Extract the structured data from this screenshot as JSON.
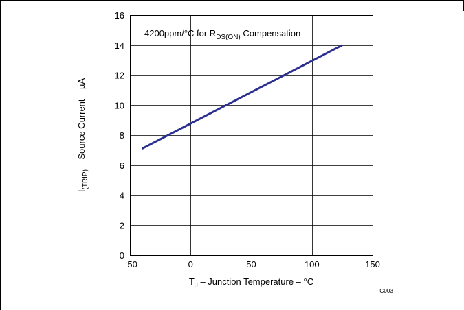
{
  "chart_data": {
    "type": "line",
    "annotation": {
      "text_before": "4200ppm/°C for R",
      "sub": "DS(ON)",
      "text_after": " Compensation"
    },
    "xlabel": {
      "prefix": "T",
      "sub": "J",
      "suffix": " – Junction Temperature – °C"
    },
    "ylabel": {
      "prefix": "I",
      "sub": "(TRIP)",
      "suffix": " – Source Current – µA"
    },
    "xlim": [
      -50,
      150
    ],
    "ylim": [
      0,
      16
    ],
    "x_ticks": [
      -50,
      0,
      50,
      100,
      150
    ],
    "x_tick_labels": [
      "–50",
      "0",
      "50",
      "100",
      "150"
    ],
    "y_ticks": [
      0,
      2,
      4,
      6,
      8,
      10,
      12,
      14,
      16
    ],
    "y_tick_labels": [
      "0",
      "2",
      "4",
      "6",
      "8",
      "10",
      "12",
      "14",
      "16"
    ],
    "grid": true,
    "series": [
      {
        "x": [
          -40,
          125
        ],
        "y": [
          7.1,
          14.0
        ],
        "color": "#2b2f8f"
      }
    ],
    "figure_id": "G003"
  }
}
